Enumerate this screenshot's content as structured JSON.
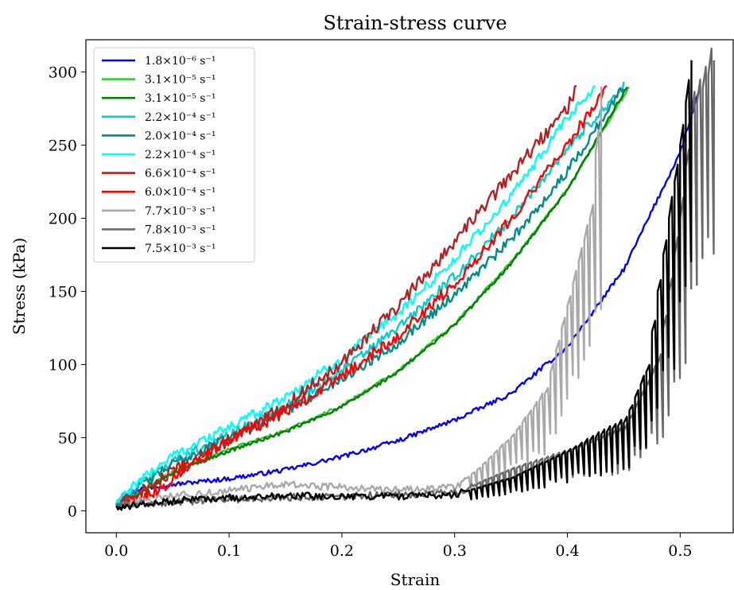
{
  "chart_data": {
    "type": "line",
    "title": "Strain-stress curve",
    "xlabel": "Strain",
    "ylabel": "Stress (kPa)",
    "xlim": [
      -0.027,
      0.547
    ],
    "ylim": [
      -15,
      322
    ],
    "xticks": [
      0.0,
      0.1,
      0.2,
      0.3,
      0.4,
      0.5
    ],
    "xtick_labels": [
      "0.0",
      "0.1",
      "0.2",
      "0.3",
      "0.4",
      "0.5"
    ],
    "yticks": [
      0,
      50,
      100,
      150,
      200,
      250,
      300
    ],
    "ytick_labels": [
      "0",
      "50",
      "100",
      "150",
      "200",
      "250",
      "300"
    ],
    "grid": false,
    "legend_position": "top-left",
    "series": [
      {
        "name": "1.8×10⁻⁶ s⁻¹",
        "color": "#0000ff",
        "mode": "smooth",
        "noise": 1.5,
        "x": [
          0.0,
          0.02,
          0.05,
          0.1,
          0.15,
          0.2,
          0.25,
          0.3,
          0.35,
          0.4,
          0.45,
          0.5,
          0.518
        ],
        "y": [
          7,
          15,
          18,
          22,
          28,
          37,
          48,
          62,
          80,
          112,
          165,
          245,
          290
        ]
      },
      {
        "name": "3.1×10⁻⁵ s⁻¹",
        "color": "#32cd32",
        "mode": "smooth",
        "noise": 1.0,
        "x": [
          0.0,
          0.02,
          0.05,
          0.1,
          0.15,
          0.2,
          0.25,
          0.3,
          0.35,
          0.4,
          0.455
        ],
        "y": [
          4,
          12,
          27,
          42,
          55,
          72,
          96,
          128,
          170,
          220,
          290
        ]
      },
      {
        "name": "3.1×10⁻⁵ s⁻¹",
        "color": "#008000",
        "mode": "smooth",
        "noise": 1.2,
        "x": [
          0.0,
          0.02,
          0.05,
          0.1,
          0.15,
          0.2,
          0.25,
          0.3,
          0.35,
          0.4,
          0.453
        ],
        "y": [
          3,
          11,
          26,
          41,
          54,
          71,
          95,
          127,
          169,
          219,
          290
        ]
      },
      {
        "name": "2.2×10⁻⁴ s⁻¹",
        "color": "#00ced1",
        "mode": "smooth",
        "noise": 3.5,
        "x": [
          0.0,
          0.02,
          0.05,
          0.1,
          0.15,
          0.2,
          0.25,
          0.3,
          0.35,
          0.4,
          0.45
        ],
        "y": [
          5,
          18,
          34,
          52,
          72,
          96,
          125,
          160,
          200,
          248,
          290
        ]
      },
      {
        "name": "2.0×10⁻⁴ s⁻¹",
        "color": "#008b8b",
        "mode": "smooth",
        "noise": 3.5,
        "x": [
          0.0,
          0.02,
          0.05,
          0.1,
          0.15,
          0.2,
          0.25,
          0.3,
          0.35,
          0.4,
          0.45
        ],
        "y": [
          4,
          16,
          32,
          50,
          68,
          90,
          115,
          148,
          185,
          232,
          290
        ]
      },
      {
        "name": "2.2×10⁻⁴ s⁻¹",
        "color": "#00ffff",
        "mode": "smooth",
        "noise": 3.5,
        "x": [
          0.0,
          0.02,
          0.05,
          0.1,
          0.15,
          0.2,
          0.25,
          0.3,
          0.35,
          0.4,
          0.425
        ],
        "y": [
          5,
          20,
          38,
          57,
          78,
          104,
          135,
          172,
          215,
          268,
          290
        ]
      },
      {
        "name": "6.6×10⁻⁴ s⁻¹",
        "color": "#b22222",
        "mode": "smooth",
        "noise": 4.5,
        "x": [
          0.0,
          0.02,
          0.05,
          0.1,
          0.15,
          0.2,
          0.25,
          0.3,
          0.35,
          0.4,
          0.408
        ],
        "y": [
          3,
          12,
          26,
          48,
          72,
          102,
          140,
          184,
          230,
          275,
          290
        ]
      },
      {
        "name": "6.0×10⁻⁴ s⁻¹",
        "color": "#ff0000",
        "mode": "smooth",
        "noise": 4.0,
        "x": [
          0.0,
          0.02,
          0.045,
          0.06,
          0.1,
          0.15,
          0.2,
          0.25,
          0.3,
          0.35,
          0.4,
          0.435
        ],
        "y": [
          4,
          8,
          18,
          30,
          48,
          68,
          92,
          120,
          155,
          200,
          250,
          290
        ]
      },
      {
        "name": "7.7×10⁻³ s⁻¹",
        "color": "#a9a9a9",
        "mode": "saw",
        "seed": 11,
        "x": [
          0.0,
          0.05,
          0.1,
          0.15,
          0.2,
          0.25,
          0.3,
          0.32,
          0.35,
          0.38,
          0.4,
          0.42,
          0.43
        ],
        "y": [
          3,
          10,
          14,
          18,
          16,
          14,
          16,
          28,
          50,
          80,
          140,
          200,
          290
        ],
        "saw_start": 0.31,
        "saw_end": 0.43,
        "saw_step": 0.005,
        "saw_amp": 0.45
      },
      {
        "name": "7.8×10⁻³ s⁻¹",
        "color": "#696969",
        "mode": "saw",
        "seed": 23,
        "x": [
          0.0,
          0.1,
          0.2,
          0.3,
          0.35,
          0.4,
          0.45,
          0.48,
          0.5,
          0.51,
          0.53
        ],
        "y": [
          4,
          8,
          10,
          12,
          28,
          40,
          55,
          100,
          200,
          270,
          308
        ],
        "saw_start": 0.32,
        "saw_end": 0.53,
        "saw_step": 0.005,
        "saw_amp": 0.5
      },
      {
        "name": "7.5×10⁻³ s⁻¹",
        "color": "#000000",
        "mode": "saw",
        "seed": 37,
        "x": [
          0.0,
          0.05,
          0.1,
          0.15,
          0.2,
          0.25,
          0.3,
          0.35,
          0.4,
          0.45,
          0.47,
          0.48,
          0.5,
          0.51
        ],
        "y": [
          2,
          7,
          9,
          10,
          10,
          10,
          11,
          22,
          40,
          60,
          95,
          150,
          250,
          308
        ],
        "saw_start": 0.31,
        "saw_end": 0.51,
        "saw_step": 0.005,
        "saw_amp": 0.5
      }
    ]
  }
}
